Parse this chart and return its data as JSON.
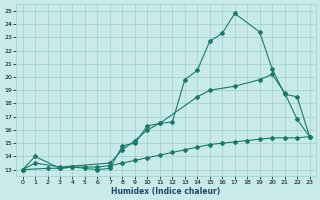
{
  "xlabel": "Humidex (Indice chaleur)",
  "bg_color": "#c8eaea",
  "grid_color": "#9ecece",
  "line_color": "#1a7a6a",
  "xlim": [
    -0.5,
    23.5
  ],
  "ylim": [
    12.5,
    25.5
  ],
  "xticks": [
    0,
    1,
    2,
    3,
    4,
    5,
    6,
    7,
    8,
    9,
    10,
    11,
    12,
    13,
    14,
    15,
    16,
    17,
    18,
    19,
    20,
    21,
    22,
    23
  ],
  "yticks": [
    13,
    14,
    15,
    16,
    17,
    18,
    19,
    20,
    21,
    22,
    23,
    24,
    25
  ],
  "line1_x": [
    0,
    1,
    3,
    4,
    5,
    6,
    7,
    8,
    9,
    10,
    11,
    12,
    13,
    14,
    15,
    16,
    17,
    19,
    20,
    21,
    22,
    23
  ],
  "line1_y": [
    13,
    14,
    13.1,
    13.2,
    13.1,
    13.0,
    13.1,
    14.8,
    15.0,
    16.3,
    16.5,
    16.6,
    19.8,
    20.5,
    22.7,
    23.3,
    24.8,
    23.4,
    20.6,
    18.7,
    18.5,
    15.5
  ],
  "line2_x": [
    0,
    1,
    3,
    7,
    8,
    9,
    10,
    11,
    14,
    15,
    17,
    19,
    20,
    21,
    22,
    23
  ],
  "line2_y": [
    13,
    13.5,
    13.2,
    13.5,
    14.5,
    15.2,
    16.0,
    16.5,
    18.5,
    19.0,
    19.3,
    19.8,
    20.2,
    18.8,
    16.8,
    15.5
  ],
  "line3_x": [
    0,
    2,
    3,
    4,
    5,
    6,
    7,
    8,
    9,
    10,
    11,
    12,
    13,
    14,
    15,
    16,
    17,
    18,
    19,
    20,
    21,
    22,
    23
  ],
  "line3_y": [
    13,
    13.1,
    13.1,
    13.2,
    13.2,
    13.2,
    13.3,
    13.5,
    13.7,
    13.9,
    14.1,
    14.3,
    14.5,
    14.7,
    14.9,
    15.0,
    15.1,
    15.2,
    15.3,
    15.4,
    15.4,
    15.4,
    15.5
  ]
}
